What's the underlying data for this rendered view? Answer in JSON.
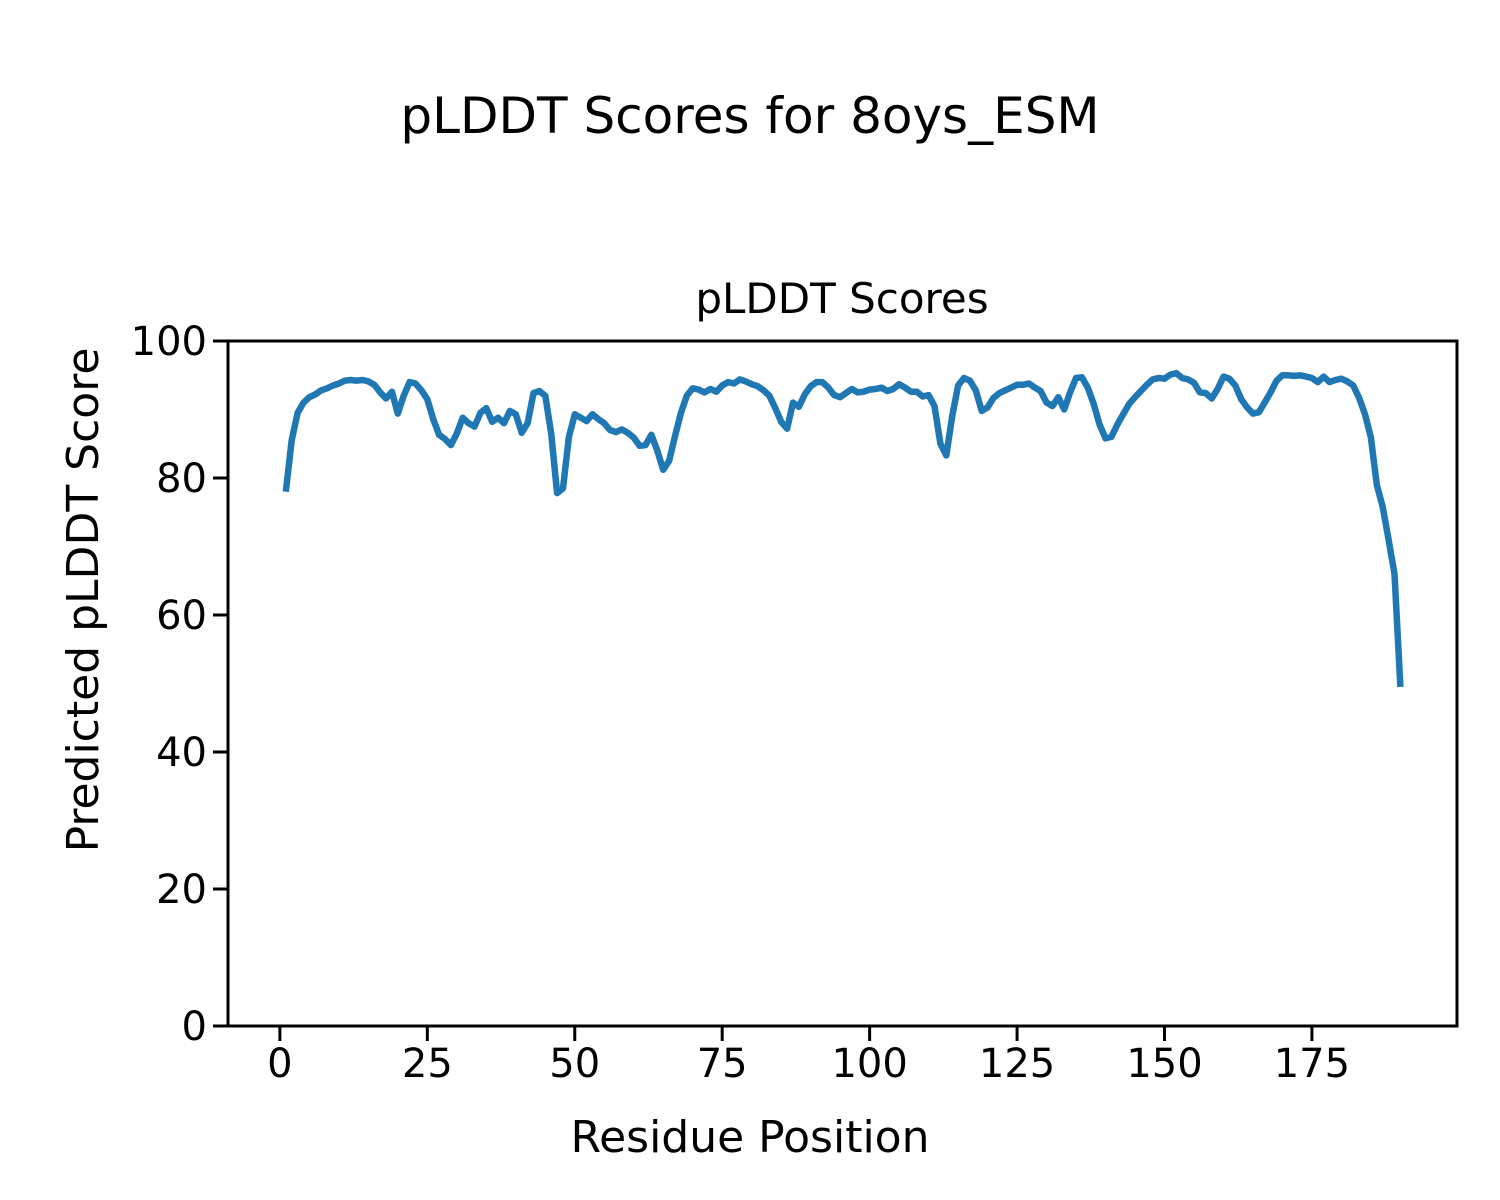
{
  "figure": {
    "suptitle": "pLDDT Scores for 8oys_ESM"
  },
  "chart_data": {
    "type": "line",
    "title": "pLDDT Scores",
    "xlabel": "Residue Position",
    "ylabel": "Predicted pLDDT Score",
    "xlim": [
      -8.8,
      199.6
    ],
    "ylim": [
      0,
      100
    ],
    "xticks": [
      0,
      25,
      50,
      75,
      100,
      125,
      150,
      175
    ],
    "yticks": [
      0,
      20,
      40,
      60,
      80,
      100
    ],
    "grid": false,
    "legend": null,
    "line_color": "#1f77b4",
    "series": [
      {
        "name": "pLDDT",
        "x_start": 1,
        "x_step": 1,
        "values": [
          78.0,
          85.5,
          89.5,
          91.0,
          91.8,
          92.2,
          92.8,
          93.1,
          93.5,
          93.8,
          94.2,
          94.3,
          94.2,
          94.3,
          94.1,
          93.6,
          92.5,
          91.6,
          92.6,
          89.4,
          92.0,
          94.0,
          93.8,
          92.8,
          91.5,
          88.6,
          86.3,
          85.7,
          84.8,
          86.5,
          88.8,
          88.0,
          87.5,
          89.5,
          90.2,
          88.2,
          88.8,
          88.0,
          89.8,
          89.3,
          86.6,
          88.0,
          92.4,
          92.7,
          92.0,
          86.5,
          77.8,
          78.5,
          86.0,
          89.3,
          88.8,
          88.3,
          89.3,
          88.6,
          88.0,
          87.0,
          86.7,
          87.1,
          86.6,
          85.9,
          84.7,
          84.8,
          86.3,
          84.0,
          81.2,
          82.5,
          86.1,
          89.5,
          92.0,
          93.1,
          92.9,
          92.5,
          93.0,
          92.6,
          93.5,
          94.0,
          93.8,
          94.4,
          94.1,
          93.7,
          93.4,
          92.8,
          92.0,
          90.2,
          88.2,
          87.2,
          91.0,
          90.4,
          92.2,
          93.4,
          94.0,
          94.0,
          93.2,
          92.1,
          91.8,
          92.4,
          93.0,
          92.5,
          92.6,
          92.9,
          93.0,
          93.2,
          92.7,
          93.0,
          93.7,
          93.2,
          92.6,
          92.6,
          91.9,
          92.1,
          90.5,
          85.0,
          83.3,
          89.0,
          93.5,
          94.6,
          94.2,
          92.8,
          89.8,
          90.3,
          91.7,
          92.4,
          92.8,
          93.2,
          93.6,
          93.6,
          93.8,
          93.2,
          92.7,
          91.0,
          90.5,
          91.8,
          90.0,
          92.5,
          94.6,
          94.7,
          93.2,
          90.8,
          87.8,
          85.8,
          86.0,
          87.8,
          89.3,
          90.8,
          91.8,
          92.7,
          93.6,
          94.4,
          94.6,
          94.5,
          95.1,
          95.3,
          94.6,
          94.4,
          93.9,
          92.5,
          92.4,
          91.6,
          93.0,
          94.8,
          94.5,
          93.5,
          91.5,
          90.3,
          89.4,
          89.6,
          91.0,
          92.5,
          94.2,
          95.0,
          95.0,
          94.9,
          95.0,
          94.8,
          94.6,
          94.0,
          94.8,
          94.0,
          94.3,
          94.5,
          94.1,
          93.5,
          91.7,
          89.3,
          85.9,
          79.0,
          75.8,
          71.0,
          66.0,
          49.5
        ]
      }
    ]
  }
}
